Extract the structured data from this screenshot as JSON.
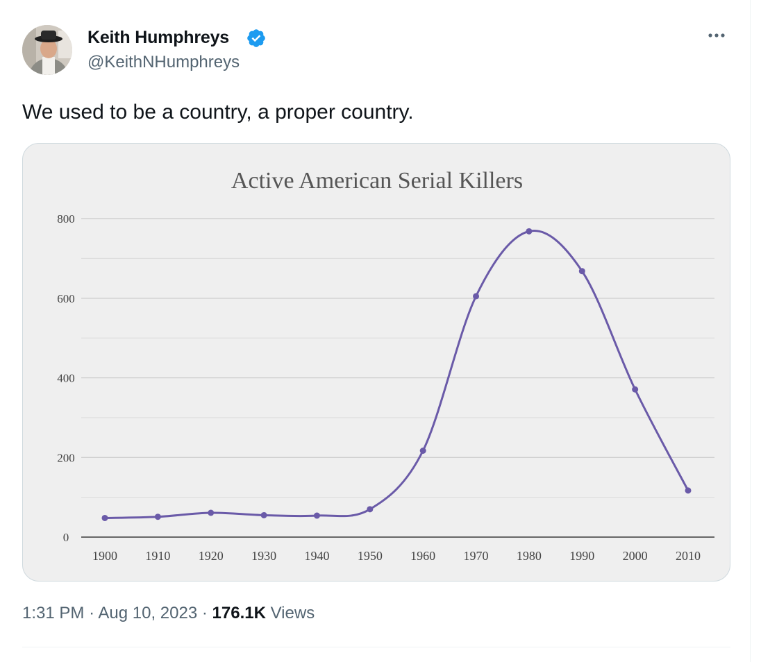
{
  "tweet": {
    "author": {
      "name": "Keith Humphreys",
      "handle": "@KeithNHumphreys",
      "verified_color": "#1d9bf0"
    },
    "text": "We used to be a country, a proper country.",
    "meta": {
      "time": "1:31 PM",
      "separator": "·",
      "date": "Aug 10, 2023",
      "views_count": "176.1K",
      "views_label": "Views"
    },
    "icons": {
      "more": "more-horizontal-icon",
      "verified": "verified-badge-icon"
    }
  },
  "chart_data": {
    "type": "line",
    "title": "Active American Serial Killers",
    "xlabel": "",
    "ylabel": "",
    "x": [
      1900,
      1910,
      1920,
      1930,
      1940,
      1950,
      1960,
      1970,
      1980,
      1990,
      2000,
      2010
    ],
    "series": [
      {
        "values": [
          48,
          51,
          61,
          55,
          54,
          70,
          217,
          605,
          768,
          668,
          371,
          117
        ],
        "color": "#6a5aa8"
      }
    ],
    "x_ticks": [
      "1900",
      "1910",
      "1920",
      "1930",
      "1940",
      "1950",
      "1960",
      "1970",
      "1980",
      "1990",
      "2000",
      "2010"
    ],
    "y_ticks": [
      "0",
      "200",
      "400",
      "600",
      "800"
    ],
    "ylim": [
      0,
      800
    ],
    "grid": true,
    "legend": "none",
    "background": "#efefef"
  }
}
